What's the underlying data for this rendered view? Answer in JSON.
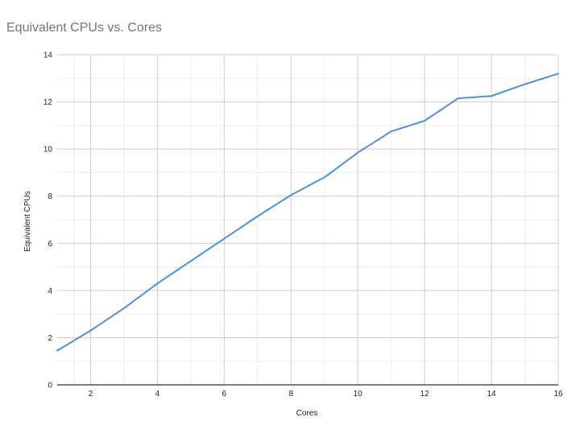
{
  "chart_data": {
    "type": "line",
    "title": "Equivalent CPUs vs. Cores",
    "xlabel": "Cores",
    "ylabel": "Equivalent CPUs",
    "xlim": [
      1,
      16
    ],
    "ylim": [
      0,
      14
    ],
    "x_ticks": [
      2,
      4,
      6,
      8,
      10,
      12,
      14,
      16
    ],
    "y_ticks": [
      0,
      2,
      4,
      6,
      8,
      10,
      12,
      14
    ],
    "grid": true,
    "legend": "none",
    "series": [
      {
        "color": "#4a90e2",
        "x": [
          1,
          2,
          3,
          4,
          5,
          6,
          7,
          8,
          9,
          10,
          11,
          12,
          13,
          14,
          15,
          16
        ],
        "values": [
          1.45,
          2.3,
          3.25,
          4.3,
          5.25,
          6.2,
          7.15,
          8.05,
          8.8,
          9.85,
          10.75,
          11.2,
          12.15,
          12.25,
          12.75,
          13.2
        ]
      }
    ]
  }
}
